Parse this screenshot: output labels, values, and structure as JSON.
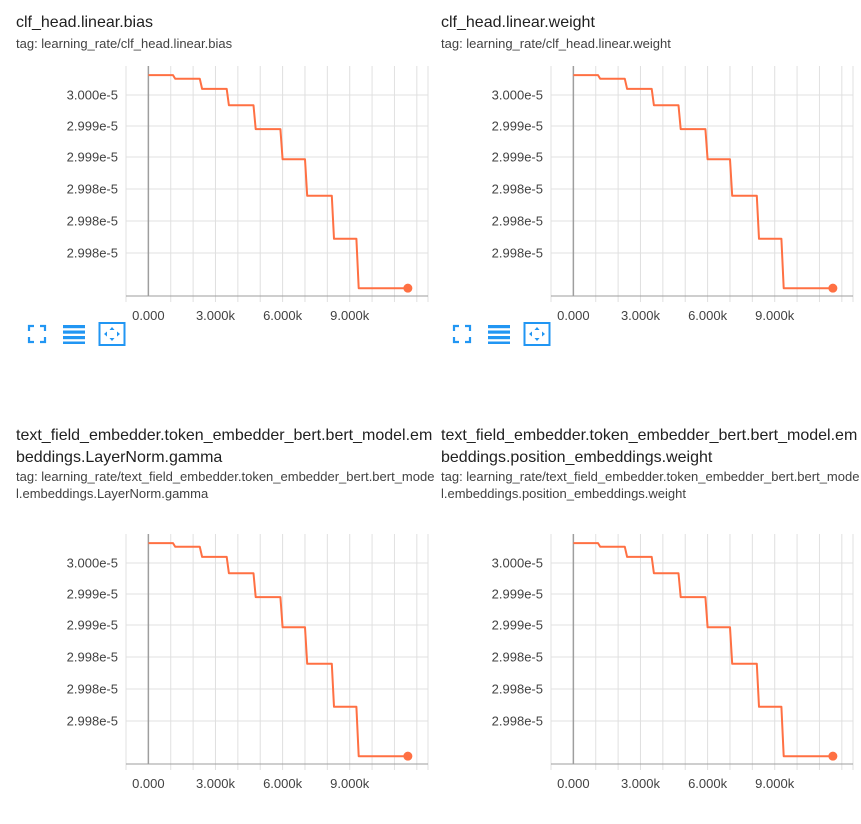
{
  "cards": [
    {
      "title": "clf_head.linear.bias",
      "tag": "tag: learning_rate/clf_head.linear.bias",
      "has_toolbar": true
    },
    {
      "title": "clf_head.linear.weight",
      "tag": "tag: learning_rate/clf_head.linear.weight",
      "has_toolbar": true
    },
    {
      "title": "text_field_embedder.token_embedder_bert.bert_model.embeddings.LayerNorm.gamma",
      "tag": "tag: learning_rate/text_field_embedder.token_embedder_bert.bert_model.embeddings.LayerNorm.gamma",
      "has_toolbar": false
    },
    {
      "title": "text_field_embedder.token_embedder_bert.bert_model.embeddings.position_embeddings.weight",
      "tag": "tag: learning_rate/text_field_embedder.token_embedder_bert.bert_model.embeddings.position_embeddings.weight",
      "has_toolbar": false
    }
  ],
  "toolbar": {
    "fit_icon": "fullscreen-icon",
    "data_icon": "data-table-icon",
    "zoom_icon": "fit-domain-icon"
  },
  "colors": {
    "series": "#ff7043",
    "axis": "#9e9e9e",
    "grid": "#e0e0e0",
    "icon": "#2196f3"
  },
  "chart_data": [
    {
      "type": "line",
      "title": "clf_head.linear.bias",
      "x_tick_labels": [
        "0.000",
        "3.000k",
        "6.000k",
        "9.000k"
      ],
      "y_tick_labels": [
        "3.000e-5",
        "2.999e-5",
        "2.999e-5",
        "2.998e-5",
        "2.998e-5",
        "2.998e-5"
      ],
      "xlim": [
        -1000,
        12500
      ],
      "ylim": [
        2.99765e-05,
        3.0001e-05
      ],
      "grid": true,
      "series": [
        {
          "name": "",
          "x": [
            0,
            1100,
            1200,
            2300,
            2400,
            3500,
            3600,
            4700,
            4800,
            5900,
            6000,
            7000,
            7100,
            8200,
            8300,
            9300,
            9400,
            10500,
            10600,
            11600
          ],
          "y": [
            3e-05,
            3e-05,
            2.99996e-05,
            2.99996e-05,
            2.99985e-05,
            2.99985e-05,
            2.99967e-05,
            2.99967e-05,
            2.99941e-05,
            2.99941e-05,
            2.99908e-05,
            2.99908e-05,
            2.99868e-05,
            2.99868e-05,
            2.99821e-05,
            2.99821e-05,
            2.99767e-05,
            2.99767e-05,
            2.99767e-05,
            2.99767e-05
          ]
        }
      ]
    },
    {
      "type": "line",
      "title": "clf_head.linear.weight",
      "x_tick_labels": [
        "0.000",
        "3.000k",
        "6.000k",
        "9.000k"
      ],
      "y_tick_labels": [
        "3.000e-5",
        "2.999e-5",
        "2.999e-5",
        "2.998e-5",
        "2.998e-5",
        "2.998e-5"
      ],
      "xlim": [
        -1000,
        12500
      ],
      "ylim": [
        2.99765e-05,
        3.0001e-05
      ],
      "grid": true,
      "series": [
        {
          "name": "",
          "x": [
            0,
            1100,
            1200,
            2300,
            2400,
            3500,
            3600,
            4700,
            4800,
            5900,
            6000,
            7000,
            7100,
            8200,
            8300,
            9300,
            9400,
            10500,
            10600,
            11600
          ],
          "y": [
            3e-05,
            3e-05,
            2.99996e-05,
            2.99996e-05,
            2.99985e-05,
            2.99985e-05,
            2.99967e-05,
            2.99967e-05,
            2.99941e-05,
            2.99941e-05,
            2.99908e-05,
            2.99908e-05,
            2.99868e-05,
            2.99868e-05,
            2.99821e-05,
            2.99821e-05,
            2.99767e-05,
            2.99767e-05,
            2.99767e-05,
            2.99767e-05
          ]
        }
      ]
    },
    {
      "type": "line",
      "title": "text_field_embedder.token_embedder_bert.bert_model.embeddings.LayerNorm.gamma",
      "x_tick_labels": [
        "0.000",
        "3.000k",
        "6.000k",
        "9.000k"
      ],
      "y_tick_labels": [
        "3.000e-5",
        "2.999e-5",
        "2.999e-5",
        "2.998e-5",
        "2.998e-5",
        "2.998e-5"
      ],
      "xlim": [
        -1000,
        12500
      ],
      "ylim": [
        2.99765e-05,
        3.0001e-05
      ],
      "grid": true,
      "series": [
        {
          "name": "",
          "x": [
            0,
            1100,
            1200,
            2300,
            2400,
            3500,
            3600,
            4700,
            4800,
            5900,
            6000,
            7000,
            7100,
            8200,
            8300,
            9300,
            9400,
            10500,
            10600,
            11600
          ],
          "y": [
            3e-05,
            3e-05,
            2.99996e-05,
            2.99996e-05,
            2.99985e-05,
            2.99985e-05,
            2.99967e-05,
            2.99967e-05,
            2.99941e-05,
            2.99941e-05,
            2.99908e-05,
            2.99908e-05,
            2.99868e-05,
            2.99868e-05,
            2.99821e-05,
            2.99821e-05,
            2.99767e-05,
            2.99767e-05,
            2.99767e-05,
            2.99767e-05
          ]
        }
      ]
    },
    {
      "type": "line",
      "title": "text_field_embedder.token_embedder_bert.bert_model.embeddings.position_embeddings.weight",
      "x_tick_labels": [
        "0.000",
        "3.000k",
        "6.000k",
        "9.000k"
      ],
      "y_tick_labels": [
        "3.000e-5",
        "2.999e-5",
        "2.999e-5",
        "2.998e-5",
        "2.998e-5",
        "2.998e-5"
      ],
      "xlim": [
        -1000,
        12500
      ],
      "ylim": [
        2.99765e-05,
        3.0001e-05
      ],
      "grid": true,
      "series": [
        {
          "name": "",
          "x": [
            0,
            1100,
            1200,
            2300,
            2400,
            3500,
            3600,
            4700,
            4800,
            5900,
            6000,
            7000,
            7100,
            8200,
            8300,
            9300,
            9400,
            10500,
            10600,
            11600
          ],
          "y": [
            3e-05,
            3e-05,
            2.99996e-05,
            2.99996e-05,
            2.99985e-05,
            2.99985e-05,
            2.99967e-05,
            2.99967e-05,
            2.99941e-05,
            2.99941e-05,
            2.99908e-05,
            2.99908e-05,
            2.99868e-05,
            2.99868e-05,
            2.99821e-05,
            2.99821e-05,
            2.99767e-05,
            2.99767e-05,
            2.99767e-05,
            2.99767e-05
          ]
        }
      ]
    }
  ]
}
